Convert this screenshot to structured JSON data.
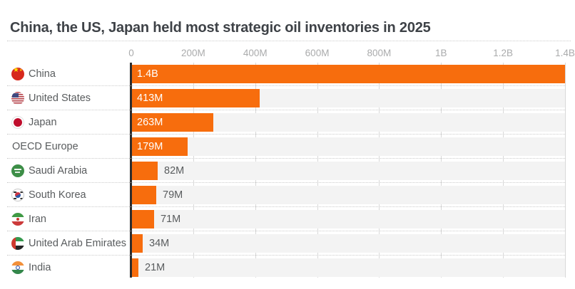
{
  "chart_data": {
    "type": "bar",
    "orientation": "horizontal",
    "title": "China, the US, Japan held most strategic oil inventories in 2025",
    "xlabel": "",
    "ylabel": "",
    "xlim_millions": [
      0,
      1400
    ],
    "x_ticks": [
      "0",
      "200M",
      "400M",
      "600M",
      "800M",
      "1B",
      "1.2B",
      "1.4B"
    ],
    "grid": "vertical-solid, dotted-row-separators",
    "legend": "none",
    "categories": [
      "China",
      "United States",
      "Japan",
      "OECD Europe",
      "Saudi Arabia",
      "South Korea",
      "Iran",
      "United Arab Emirates",
      "India"
    ],
    "values_millions": [
      1400,
      413,
      263,
      179,
      82,
      79,
      71,
      34,
      21
    ],
    "value_labels": [
      "1.4B",
      "413M",
      "263M",
      "179M",
      "82M",
      "79M",
      "71M",
      "34M",
      "21M"
    ],
    "flag_icons": [
      "china-flag-icon",
      "us-flag-icon",
      "japan-flag-icon",
      null,
      "saudi-arabia-flag-icon",
      "south-korea-flag-icon",
      "iran-flag-icon",
      "uae-flag-icon",
      "india-flag-icon"
    ],
    "bar_color": "#f76d0d"
  },
  "colors": {
    "bar": "#f76d0d",
    "title_text": "#3e4247",
    "label_text": "#595c5e",
    "tick_text": "#aaabac",
    "row_band": "#f3f3f3",
    "gridline": "#d8d8d8",
    "axis_line": "#2d2d2d",
    "inside_value_text": "#ffffff"
  }
}
